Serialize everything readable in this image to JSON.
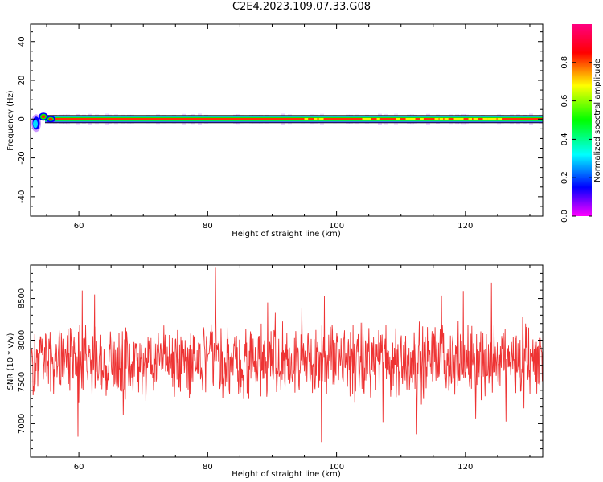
{
  "figure": {
    "title": "C2E4.2023.109.07.33.G08"
  },
  "chart_data": [
    {
      "type": "heatmap",
      "xlabel": "Height of straight line (km)",
      "ylabel": "Frequency (Hz)",
      "xlim": [
        52.5,
        132
      ],
      "ylim": [
        -50,
        49
      ],
      "x_ticks": [
        60,
        80,
        100,
        120
      ],
      "y_ticks": [
        -40,
        -20,
        0,
        20,
        40
      ],
      "description_band": {
        "center_hz": 0,
        "near_start_km": [
          53,
          57
        ]
      },
      "colorbar": {
        "label": "Normalized spectral amplitude",
        "range": [
          0.0,
          1.0
        ],
        "ticks": [
          0.0,
          0.2,
          0.4,
          0.6,
          0.8
        ],
        "tick_labels": [
          "0.0",
          "0.2",
          "0.4",
          "0.6",
          "0.8"
        ],
        "colormap": "gist_rainbow_reversed",
        "colors": [
          "#ff00ff",
          "#0000ff",
          "#00ffff",
          "#00ff00",
          "#ffff00",
          "#ff0000",
          "#ff0080"
        ]
      }
    },
    {
      "type": "line",
      "xlabel": "Height of straight line (km)",
      "ylabel": "SNR (10 * v/v)",
      "xlim": [
        52.5,
        132
      ],
      "ylim": [
        6600,
        8900
      ],
      "x_ticks": [
        60,
        80,
        100,
        120
      ],
      "y_ticks": [
        7000,
        7500,
        8000,
        8500
      ],
      "line_color": "#ee3333",
      "series_summary": {
        "mean": 7760,
        "min_approx": 6600,
        "max_approx": 8880,
        "samples": 1200
      }
    }
  ]
}
